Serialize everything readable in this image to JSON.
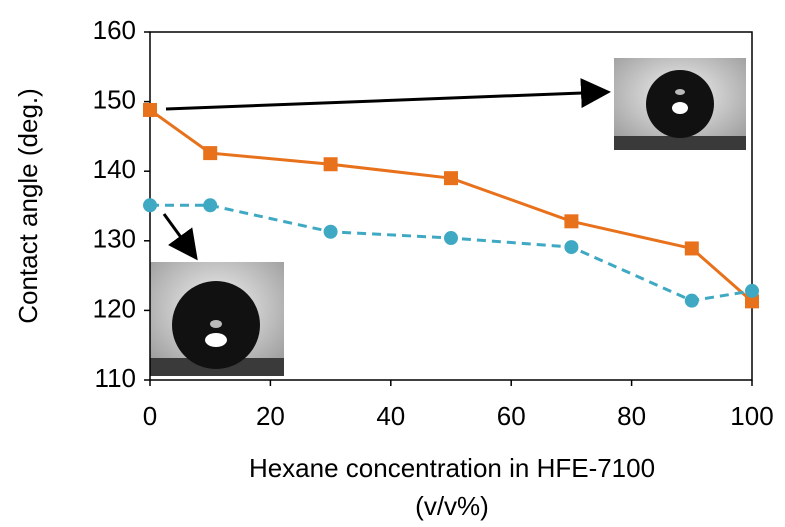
{
  "chart_data": {
    "type": "line",
    "x_label": [
      "Hexane concentration in HFE-7100",
      "(v/v%)"
    ],
    "y_label": "Contact angle (deg.)",
    "series": [
      {
        "color": "#e8711c",
        "marker": "square",
        "dashed": false,
        "x": [
          0,
          10,
          30,
          50,
          70,
          90,
          100
        ],
        "values": [
          148.8,
          142.6,
          141,
          139,
          132.8,
          128.9,
          121.3
        ]
      },
      {
        "color": "#3fa9c4",
        "marker": "circle",
        "dashed": true,
        "x": [
          0,
          10,
          30,
          50,
          70,
          90,
          100
        ],
        "values": [
          135.1,
          135.1,
          131.3,
          130.4,
          129.1,
          121.4,
          122.8
        ]
      }
    ],
    "xlim": [
      0,
      100
    ],
    "xticks": [
      0,
      20,
      40,
      60,
      80,
      100
    ],
    "ylim": [
      110,
      160
    ],
    "yticks": [
      110,
      120,
      130,
      140,
      150,
      160
    ],
    "grid": false
  }
}
